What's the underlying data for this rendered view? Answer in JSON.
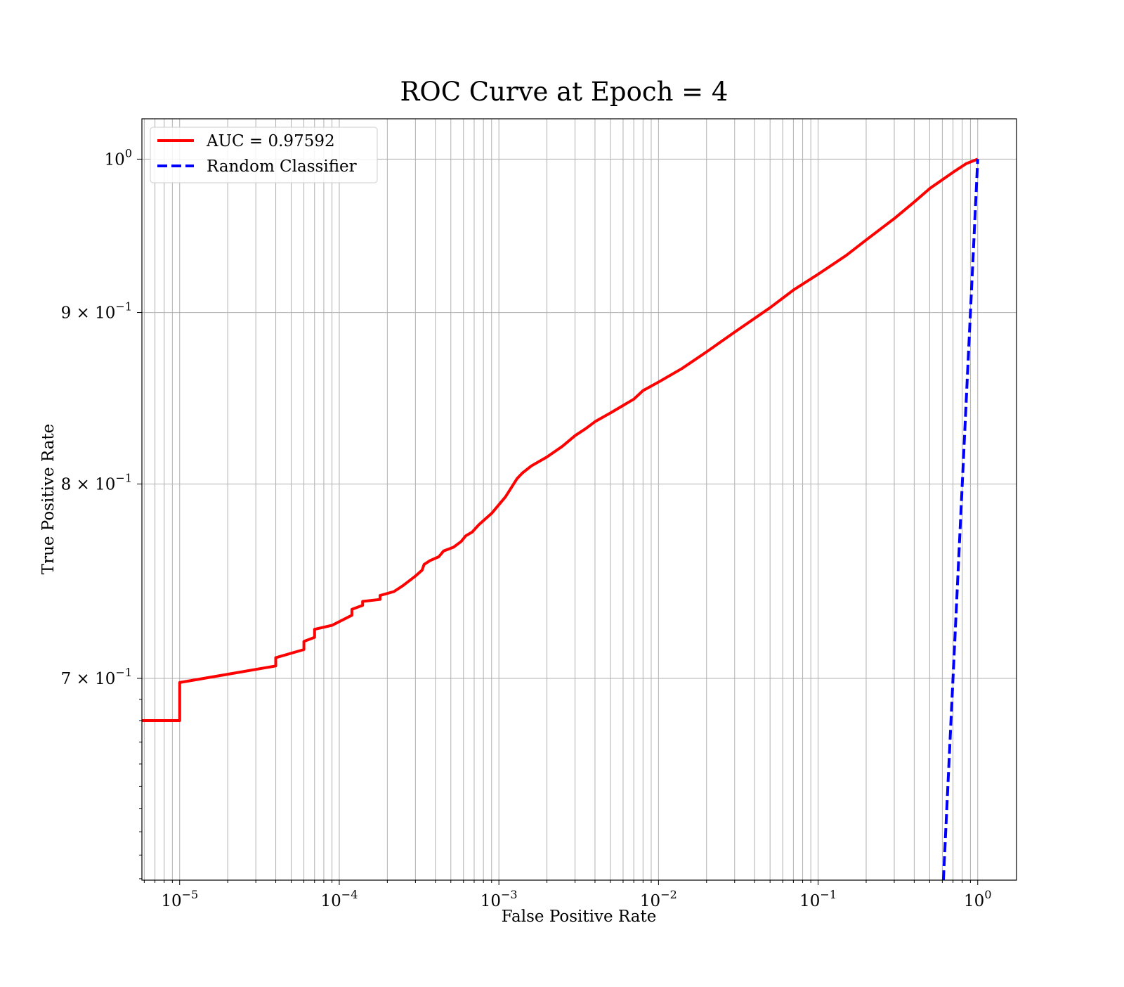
{
  "chart_data": {
    "type": "line",
    "title": "ROC Curve at Epoch = 4",
    "xlabel": "False Positive Rate",
    "ylabel": "True Positive Rate",
    "xscale": "log",
    "yscale": "log",
    "xlim": [
      5.8e-06,
      1.75
    ],
    "ylim": [
      0.6094,
      1.0281
    ],
    "grid": "on (major and minor, both axes)",
    "legend_position": "top-left",
    "x_tick_labels": [
      {
        "value": 1e-05,
        "base": "10",
        "exp": "−5"
      },
      {
        "value": 0.0001,
        "base": "10",
        "exp": "−4"
      },
      {
        "value": 0.001,
        "base": "10",
        "exp": "−3"
      },
      {
        "value": 0.01,
        "base": "10",
        "exp": "−2"
      },
      {
        "value": 0.1,
        "base": "10",
        "exp": "−1"
      },
      {
        "value": 1,
        "base": "10",
        "exp": "0"
      }
    ],
    "y_tick_labels": [
      {
        "value": 1.0,
        "mant": "",
        "base": "10",
        "exp": "0"
      },
      {
        "value": 0.9,
        "mant": "9 × ",
        "base": "10",
        "exp": "−1"
      },
      {
        "value": 0.8,
        "mant": "8 × ",
        "base": "10",
        "exp": "−1"
      },
      {
        "value": 0.7,
        "mant": "7 × ",
        "base": "10",
        "exp": "−1"
      }
    ],
    "series": [
      {
        "name": "AUC = 0.97592",
        "color": "#ff0000",
        "style": "solid",
        "x": [
          5.8e-06,
          1e-05,
          1e-05,
          2e-05,
          4e-05,
          4e-05,
          6e-05,
          6e-05,
          7e-05,
          7e-05,
          9e-05,
          0.00012,
          0.00012,
          0.00014,
          0.00014,
          0.00018,
          0.00018,
          0.00022,
          0.00025,
          0.0003,
          0.00033,
          0.00034,
          0.00037,
          0.00042,
          0.00045,
          0.00052,
          0.00058,
          0.00062,
          0.00068,
          0.00075,
          0.0009,
          0.0011,
          0.0013,
          0.0014,
          0.0016,
          0.002,
          0.0025,
          0.003,
          0.0035,
          0.004,
          0.005,
          0.007,
          0.008,
          0.01,
          0.014,
          0.02,
          0.03,
          0.05,
          0.07,
          0.1,
          0.15,
          0.2,
          0.3,
          0.4,
          0.5,
          0.7,
          0.85,
          1.0
        ],
        "y": [
          0.68,
          0.68,
          0.698,
          0.702,
          0.706,
          0.71,
          0.714,
          0.718,
          0.72,
          0.724,
          0.726,
          0.731,
          0.734,
          0.736,
          0.738,
          0.739,
          0.741,
          0.743,
          0.746,
          0.751,
          0.754,
          0.757,
          0.759,
          0.761,
          0.764,
          0.766,
          0.769,
          0.772,
          0.774,
          0.778,
          0.784,
          0.793,
          0.803,
          0.806,
          0.81,
          0.815,
          0.821,
          0.827,
          0.831,
          0.835,
          0.84,
          0.848,
          0.853,
          0.858,
          0.866,
          0.876,
          0.888,
          0.903,
          0.914,
          0.924,
          0.936,
          0.946,
          0.96,
          0.971,
          0.98,
          0.991,
          0.997,
          1.0
        ]
      },
      {
        "name": "Random Classifier",
        "color": "#0000ff",
        "style": "dashed",
        "x": [
          0.6094,
          1.0
        ],
        "y": [
          0.6094,
          1.0
        ]
      }
    ]
  }
}
